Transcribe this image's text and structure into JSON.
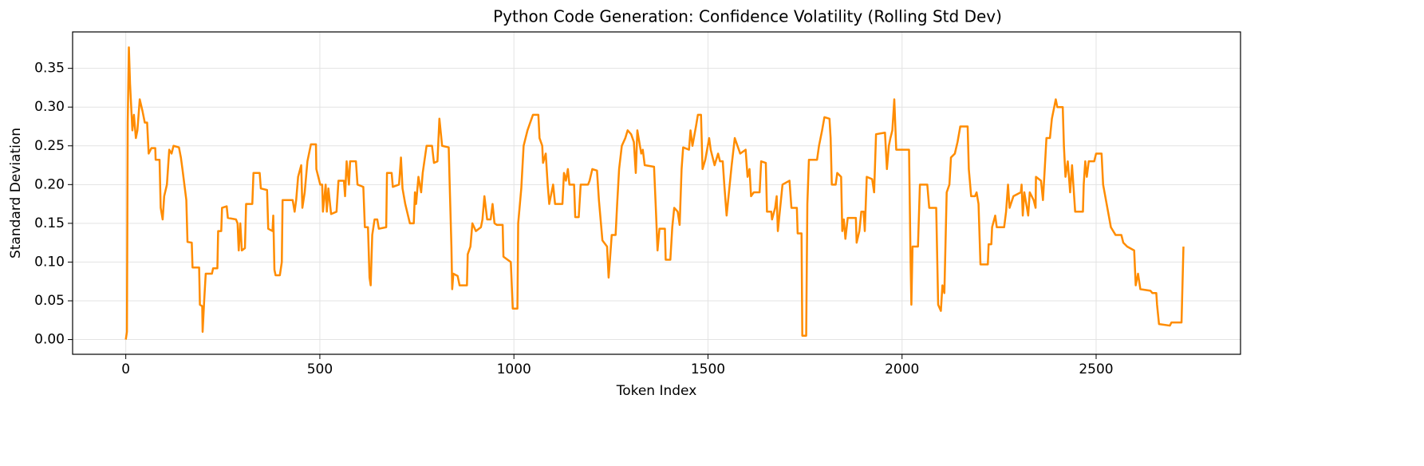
{
  "chart_data": {
    "type": "line",
    "title": "Python Code Generation: Confidence Volatility (Rolling Std Dev)",
    "xlabel": "Token Index",
    "ylabel": "Standard Deviation",
    "color": "#ff8c00",
    "grid": true,
    "xlim": [
      -137,
      2872
    ],
    "ylim": [
      -0.019,
      0.397
    ],
    "xticks": [
      0,
      500,
      1000,
      1500,
      2000,
      2500
    ],
    "yticks": [
      {
        "value": 0,
        "label": "0.00"
      },
      {
        "value": 0.05,
        "label": "0.05"
      },
      {
        "value": 0.1,
        "label": "0.10"
      },
      {
        "value": 0.15,
        "label": "0.15"
      },
      {
        "value": 0.2,
        "label": "0.20"
      },
      {
        "value": 0.25,
        "label": "0.25"
      },
      {
        "value": 0.3,
        "label": "0.30"
      },
      {
        "value": 0.35,
        "label": "0.35"
      }
    ],
    "x": [
      0,
      3,
      5,
      8,
      11,
      17,
      21,
      26,
      30,
      36,
      43,
      49,
      55,
      59,
      66,
      76,
      77,
      87,
      90,
      95,
      99,
      106,
      112,
      118,
      123,
      137,
      142,
      146,
      151,
      156,
      159,
      170,
      172,
      189,
      191,
      197,
      198,
      202,
      206,
      222,
      225,
      236,
      238,
      246,
      248,
      260,
      263,
      284,
      288,
      291,
      295,
      299,
      307,
      310,
      326,
      329,
      345,
      348,
      364,
      367,
      378,
      380,
      383,
      386,
      397,
      402,
      404,
      430,
      435,
      439,
      444,
      452,
      455,
      461,
      468,
      477,
      490,
      491,
      501,
      506,
      508,
      515,
      518,
      522,
      529,
      543,
      548,
      562,
      565,
      569,
      575,
      578,
      593,
      597,
      612,
      616,
      624,
      628,
      631,
      635,
      641,
      648,
      652,
      671,
      673,
      685,
      688,
      704,
      709,
      713,
      720,
      732,
      742,
      745,
      748,
      754,
      761,
      765,
      775,
      789,
      794,
      803,
      808,
      815,
      832,
      834,
      839,
      841,
      844,
      855,
      860,
      879,
      881,
      888,
      893,
      902,
      915,
      919,
      924,
      931,
      940,
      945,
      950,
      956,
      971,
      973,
      992,
      997,
      1009,
      1011,
      1019,
      1025,
      1035,
      1049,
      1063,
      1066,
      1073,
      1075,
      1082,
      1087,
      1091,
      1101,
      1106,
      1125,
      1129,
      1134,
      1139,
      1143,
      1155,
      1158,
      1167,
      1172,
      1191,
      1195,
      1202,
      1214,
      1219,
      1228,
      1240,
      1244,
      1247,
      1252,
      1262,
      1266,
      1271,
      1278,
      1287,
      1293,
      1302,
      1309,
      1314,
      1318,
      1328,
      1332,
      1337,
      1361,
      1366,
      1370,
      1375,
      1389,
      1391,
      1403,
      1408,
      1413,
      1422,
      1427,
      1432,
      1436,
      1451,
      1455,
      1460,
      1469,
      1474,
      1482,
      1486,
      1493,
      1503,
      1507,
      1517,
      1526,
      1531,
      1538,
      1542,
      1548,
      1555,
      1561,
      1569,
      1576,
      1583,
      1597,
      1602,
      1607,
      1611,
      1618,
      1633,
      1637,
      1649,
      1652,
      1663,
      1665,
      1673,
      1677,
      1680,
      1684,
      1692,
      1710,
      1715,
      1729,
      1731,
      1741,
      1743,
      1753,
      1756,
      1760,
      1781,
      1786,
      1794,
      1800,
      1813,
      1816,
      1819,
      1829,
      1833,
      1843,
      1846,
      1850,
      1854,
      1860,
      1881,
      1883,
      1890,
      1895,
      1901,
      1904,
      1909,
      1923,
      1928,
      1933,
      1956,
      1961,
      1966,
      1970,
      1975,
      1980,
      1985,
      2018,
      2022,
      2024,
      2027,
      2041,
      2046,
      2065,
      2070,
      2088,
      2093,
      2100,
      2104,
      2109,
      2115,
      2122,
      2126,
      2136,
      2143,
      2150,
      2169,
      2172,
      2178,
      2188,
      2192,
      2197,
      2202,
      2221,
      2223,
      2230,
      2232,
      2240,
      2244,
      2263,
      2268,
      2273,
      2277,
      2287,
      2306,
      2308,
      2311,
      2315,
      2325,
      2329,
      2339,
      2344,
      2345,
      2358,
      2363,
      2367,
      2372,
      2381,
      2386,
      2396,
      2400,
      2414,
      2417,
      2421,
      2427,
      2433,
      2438,
      2446,
      2466,
      2468,
      2472,
      2476,
      2481,
      2495,
      2500,
      2514,
      2518,
      2538,
      2550,
      2565,
      2570,
      2580,
      2598,
      2602,
      2608,
      2614,
      2640,
      2645,
      2655,
      2657,
      2662,
      2690,
      2694,
      2720,
      2725
    ],
    "values": [
      0,
      0.01,
      0.28,
      0.377,
      0.33,
      0.27,
      0.29,
      0.26,
      0.27,
      0.31,
      0.295,
      0.28,
      0.28,
      0.24,
      0.247,
      0.247,
      0.232,
      0.232,
      0.17,
      0.155,
      0.185,
      0.2,
      0.245,
      0.24,
      0.25,
      0.248,
      0.235,
      0.22,
      0.2,
      0.18,
      0.126,
      0.125,
      0.093,
      0.093,
      0.045,
      0.043,
      0.01,
      0.05,
      0.085,
      0.085,
      0.092,
      0.092,
      0.14,
      0.14,
      0.17,
      0.172,
      0.157,
      0.155,
      0.15,
      0.115,
      0.15,
      0.115,
      0.118,
      0.175,
      0.175,
      0.215,
      0.215,
      0.195,
      0.193,
      0.143,
      0.14,
      0.16,
      0.09,
      0.083,
      0.083,
      0.1,
      0.18,
      0.18,
      0.165,
      0.18,
      0.21,
      0.225,
      0.17,
      0.19,
      0.23,
      0.252,
      0.252,
      0.22,
      0.2,
      0.2,
      0.165,
      0.2,
      0.165,
      0.195,
      0.162,
      0.165,
      0.205,
      0.205,
      0.185,
      0.23,
      0.2,
      0.23,
      0.23,
      0.2,
      0.197,
      0.145,
      0.145,
      0.08,
      0.07,
      0.135,
      0.155,
      0.155,
      0.143,
      0.145,
      0.215,
      0.215,
      0.197,
      0.2,
      0.235,
      0.195,
      0.175,
      0.15,
      0.15,
      0.19,
      0.175,
      0.21,
      0.19,
      0.215,
      0.25,
      0.25,
      0.228,
      0.23,
      0.285,
      0.25,
      0.248,
      0.21,
      0.12,
      0.065,
      0.085,
      0.082,
      0.07,
      0.07,
      0.11,
      0.12,
      0.15,
      0.14,
      0.145,
      0.155,
      0.185,
      0.155,
      0.155,
      0.175,
      0.15,
      0.148,
      0.148,
      0.107,
      0.1,
      0.04,
      0.04,
      0.15,
      0.195,
      0.25,
      0.27,
      0.29,
      0.29,
      0.26,
      0.25,
      0.228,
      0.24,
      0.2,
      0.175,
      0.2,
      0.175,
      0.175,
      0.215,
      0.205,
      0.22,
      0.2,
      0.2,
      0.158,
      0.158,
      0.2,
      0.2,
      0.205,
      0.22,
      0.218,
      0.18,
      0.128,
      0.12,
      0.08,
      0.1,
      0.135,
      0.135,
      0.175,
      0.22,
      0.25,
      0.26,
      0.27,
      0.265,
      0.255,
      0.215,
      0.27,
      0.24,
      0.245,
      0.225,
      0.223,
      0.165,
      0.115,
      0.143,
      0.143,
      0.103,
      0.103,
      0.145,
      0.17,
      0.165,
      0.148,
      0.22,
      0.248,
      0.245,
      0.27,
      0.25,
      0.275,
      0.29,
      0.29,
      0.22,
      0.232,
      0.26,
      0.245,
      0.225,
      0.24,
      0.23,
      0.23,
      0.2,
      0.16,
      0.195,
      0.225,
      0.26,
      0.25,
      0.24,
      0.245,
      0.21,
      0.22,
      0.185,
      0.19,
      0.19,
      0.23,
      0.228,
      0.165,
      0.165,
      0.155,
      0.17,
      0.185,
      0.14,
      0.16,
      0.2,
      0.205,
      0.17,
      0.17,
      0.137,
      0.137,
      0.005,
      0.005,
      0.175,
      0.232,
      0.232,
      0.25,
      0.27,
      0.287,
      0.285,
      0.26,
      0.2,
      0.2,
      0.215,
      0.21,
      0.14,
      0.155,
      0.13,
      0.157,
      0.157,
      0.125,
      0.14,
      0.165,
      0.165,
      0.14,
      0.21,
      0.207,
      0.19,
      0.265,
      0.267,
      0.22,
      0.25,
      0.26,
      0.27,
      0.31,
      0.245,
      0.245,
      0.1,
      0.045,
      0.12,
      0.12,
      0.2,
      0.2,
      0.17,
      0.17,
      0.045,
      0.037,
      0.07,
      0.06,
      0.19,
      0.2,
      0.235,
      0.24,
      0.255,
      0.275,
      0.275,
      0.22,
      0.185,
      0.185,
      0.19,
      0.175,
      0.097,
      0.097,
      0.123,
      0.123,
      0.145,
      0.16,
      0.145,
      0.145,
      0.165,
      0.2,
      0.17,
      0.185,
      0.19,
      0.2,
      0.16,
      0.19,
      0.16,
      0.19,
      0.18,
      0.17,
      0.21,
      0.205,
      0.18,
      0.215,
      0.26,
      0.26,
      0.285,
      0.31,
      0.3,
      0.3,
      0.25,
      0.21,
      0.23,
      0.19,
      0.225,
      0.165,
      0.165,
      0.2,
      0.23,
      0.21,
      0.23,
      0.23,
      0.24,
      0.24,
      0.2,
      0.145,
      0.135,
      0.135,
      0.125,
      0.12,
      0.115,
      0.07,
      0.085,
      0.065,
      0.063,
      0.06,
      0.06,
      0.045,
      0.02,
      0.018,
      0.022,
      0.022,
      0.12
    ]
  }
}
